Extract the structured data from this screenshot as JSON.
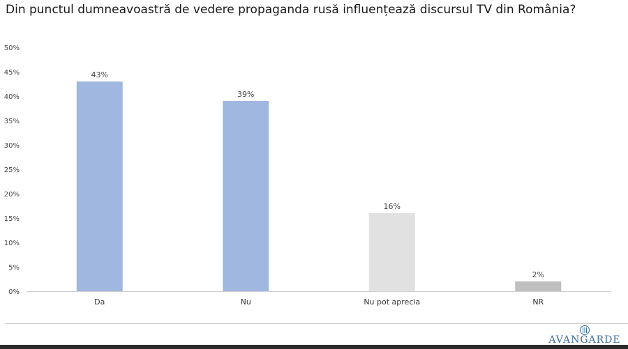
{
  "title": "Din punctul dumneavoastră de vedere propaganda rusă influențează discursul TV din România?",
  "chart_data": {
    "type": "bar",
    "categories": [
      "Da",
      "Nu",
      "Nu pot aprecia",
      "NR"
    ],
    "values": [
      43,
      39,
      16,
      2
    ],
    "value_labels": [
      "43%",
      "39%",
      "16%",
      "2%"
    ],
    "bar_colors": [
      "#a0b8e0",
      "#a0b8e0",
      "#e1e1e1",
      "#bfbfbf"
    ],
    "y_ticks": [
      0,
      5,
      10,
      15,
      20,
      25,
      30,
      35,
      40,
      45,
      50
    ],
    "y_tick_labels": [
      "0%",
      "5%",
      "10%",
      "15%",
      "20%",
      "25%",
      "30%",
      "35%",
      "40%",
      "45%",
      "50%"
    ],
    "ylim": [
      0,
      50
    ],
    "grid": false,
    "legend": "none"
  },
  "logo": {
    "text": "AVANGARDE",
    "icon": "avangarde-seal-icon"
  }
}
